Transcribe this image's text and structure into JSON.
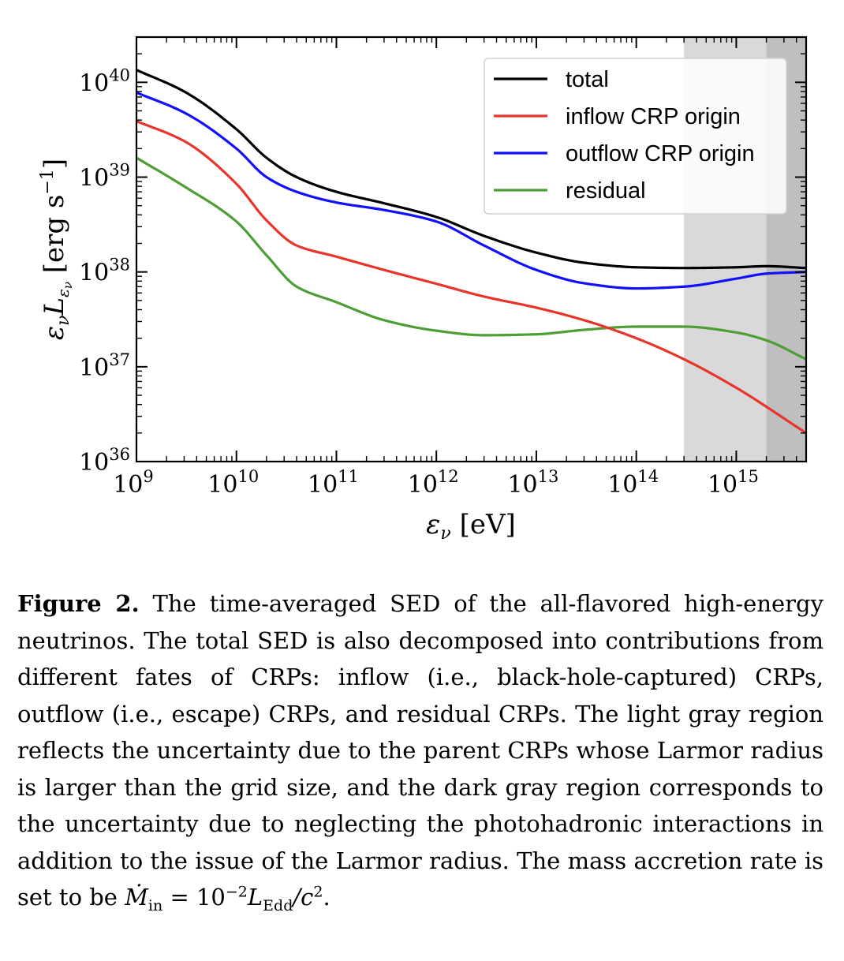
{
  "chart_data": {
    "type": "line",
    "title": "",
    "xlabel": "εν [eV]",
    "ylabel": "ενLεν [erg s−1]",
    "x_scale": "log",
    "y_scale": "log",
    "xlim": [
      1000000000.0,
      5000000000000000.0
    ],
    "ylim": [
      1e+36,
      3e+40
    ],
    "x_ticks": [
      {
        "base": "10",
        "exp": "9"
      },
      {
        "base": "10",
        "exp": "10"
      },
      {
        "base": "10",
        "exp": "11"
      },
      {
        "base": "10",
        "exp": "12"
      },
      {
        "base": "10",
        "exp": "13"
      },
      {
        "base": "10",
        "exp": "14"
      },
      {
        "base": "10",
        "exp": "15"
      }
    ],
    "y_ticks": [
      {
        "base": "10",
        "exp": "36"
      },
      {
        "base": "10",
        "exp": "37"
      },
      {
        "base": "10",
        "exp": "38"
      },
      {
        "base": "10",
        "exp": "39"
      },
      {
        "base": "10",
        "exp": "40"
      }
    ],
    "shaded_regions": [
      {
        "x_range": [
          300000000000000.0,
          2000000000000000.0
        ],
        "color": "#d9d9d9"
      },
      {
        "x_range": [
          2000000000000000.0,
          5000000000000000.0
        ],
        "color": "#bfbfbf"
      }
    ],
    "legend_position": "top-right",
    "series": [
      {
        "name": "total",
        "color": "#000000",
        "x": [
          1000000000.0,
          3000000000.0,
          10000000000.0,
          20000000000.0,
          40000000000.0,
          100000000000.0,
          300000000000.0,
          1000000000000.0,
          3000000000000.0,
          10000000000000.0,
          30000000000000.0,
          100000000000000.0,
          300000000000000.0,
          1000000000000000.0,
          2000000000000000.0,
          5000000000000000.0
        ],
        "y": [
          1.35e+40,
          8e+39,
          3.2e+39,
          1.6e+39,
          1e+39,
          7e+38,
          5.3e+38,
          3.8e+38,
          2.4e+38,
          1.6e+38,
          1.25e+38,
          1.12e+38,
          1.1e+38,
          1.12e+38,
          1.15e+38,
          1.1e+38
        ]
      },
      {
        "name": "inflow CRP origin",
        "color": "#e8352b",
        "x": [
          1000000000.0,
          3000000000.0,
          10000000000.0,
          20000000000.0,
          40000000000.0,
          100000000000.0,
          300000000000.0,
          1000000000000.0,
          3000000000000.0,
          10000000000000.0,
          30000000000000.0,
          100000000000000.0,
          300000000000000.0,
          1000000000000000.0,
          5000000000000000.0
        ],
        "y": [
          3.9e+39,
          2.4e+39,
          8.5e+38,
          3.5e+38,
          1.9e+38,
          1.45e+38,
          1.05e+38,
          7.5e+37,
          5.5e+37,
          4.2e+37,
          3.1e+37,
          2e+37,
          1.2e+37,
          6e+36,
          2e+36
        ]
      },
      {
        "name": "outflow CRP origin",
        "color": "#1010ff",
        "x": [
          1000000000.0,
          3000000000.0,
          10000000000.0,
          20000000000.0,
          40000000000.0,
          100000000000.0,
          300000000000.0,
          1000000000000.0,
          3000000000000.0,
          10000000000000.0,
          30000000000000.0,
          100000000000000.0,
          300000000000000.0,
          1000000000000000.0,
          2000000000000000.0,
          5000000000000000.0
        ],
        "y": [
          7.8e+39,
          4.8e+39,
          2e+39,
          1e+39,
          7e+38,
          5.4e+38,
          4.5e+38,
          3.4e+38,
          1.9e+38,
          1.05e+38,
          7.6e+37,
          6.7e+37,
          7e+37,
          8.5e+37,
          9.6e+37,
          1e+38
        ]
      },
      {
        "name": "residual",
        "color": "#4c9e35",
        "x": [
          1000000000.0,
          3000000000.0,
          10000000000.0,
          20000000000.0,
          40000000000.0,
          100000000000.0,
          300000000000.0,
          1000000000000.0,
          3000000000000.0,
          10000000000000.0,
          30000000000000.0,
          100000000000000.0,
          300000000000000.0,
          1000000000000000.0,
          2000000000000000.0,
          5000000000000000.0
        ],
        "y": [
          1.6e+39,
          8e+38,
          3.4e+38,
          1.5e+38,
          7e+37,
          4.8e+37,
          3.1e+37,
          2.4e+37,
          2.15e+37,
          2.2e+37,
          2.45e+37,
          2.65e+37,
          2.65e+37,
          2.3e+37,
          1.9e+37,
          1.2e+37
        ]
      }
    ]
  },
  "caption": {
    "label": "Figure 2.",
    "text_before_formula": " The time-averaged SED of the all-flavored high-energy neutrinos. The total SED is also decomposed into contributions from different fates of CRPs: inflow (i.e., black-hole-captured) CRPs, outflow (i.e., escape) CRPs, and residual CRPs. The light gray region reflects the uncertainty due to the parent CRPs whose Larmor radius is larger than the grid size, and the dark gray region corresponds to the uncertainty due to neglecting the photohadronic interactions in addition to the issue of the Larmor radius. The mass accretion rate is set to be ",
    "formula": {
      "lhs": "Ṁ",
      "lhs_sub": "in",
      "eq": " = 10",
      "exp": "−2",
      "L": "L",
      "L_sub": "Edd",
      "rest": "/c",
      "c_exp": "2",
      "end": "."
    }
  }
}
